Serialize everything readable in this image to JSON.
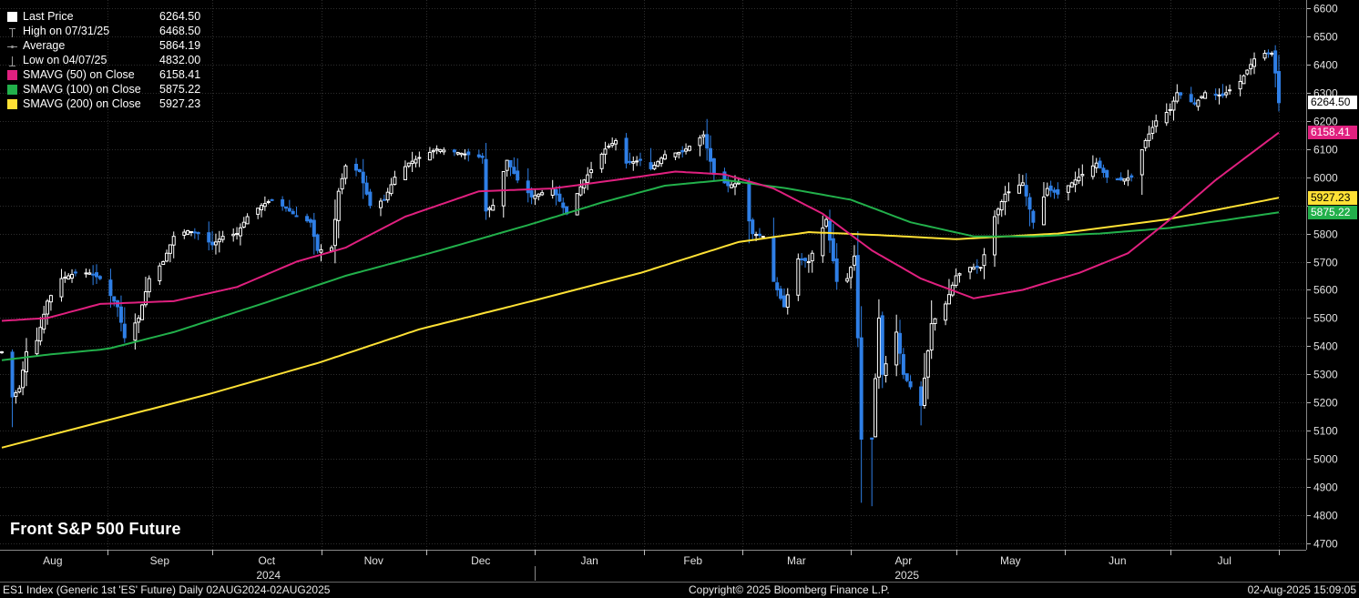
{
  "legend": [
    {
      "label": "Last Price",
      "value": "6264.50",
      "color": "#ffffff",
      "icon": "square-icon"
    },
    {
      "label": "High on 07/31/25",
      "value": "6468.50",
      "color": "#9a9a9a",
      "icon": "high-marker-icon"
    },
    {
      "label": "Average",
      "value": "5864.19",
      "color": "#9a9a9a",
      "icon": "average-marker-icon"
    },
    {
      "label": "Low on 04/07/25",
      "value": "4832.00",
      "color": "#9a9a9a",
      "icon": "low-marker-icon"
    },
    {
      "label": "SMAVG (50)  on Close",
      "value": "6158.41",
      "color": "#e0207f",
      "icon": "square-icon"
    },
    {
      "label": "SMAVG (100)  on Close",
      "value": "5875.22",
      "color": "#22b04b",
      "icon": "square-icon"
    },
    {
      "label": "SMAVG (200)  on Close",
      "value": "5927.23",
      "color": "#ffe135",
      "icon": "square-icon"
    }
  ],
  "title": "Front S&P 500 Future",
  "footer": {
    "left": "ES1 Index (Generic 1st 'ES' Future)  Daily 02AUG2024-02AUG2025",
    "center": "Copyright© 2025 Bloomberg Finance L.P.",
    "right": "02-Aug-2025 15:09:05"
  },
  "badges": [
    {
      "name": "last-price-badge",
      "text": "6264.50",
      "value": 6264.5,
      "bg": "#ffffff",
      "fg": "#000000"
    },
    {
      "name": "smavg50-badge",
      "text": "6158.41",
      "value": 6158.41,
      "bg": "#e0207f",
      "fg": "#ffffff"
    },
    {
      "name": "smavg200-badge",
      "text": "5927.23",
      "value": 5927.23,
      "bg": "#ffe135",
      "fg": "#000000"
    },
    {
      "name": "smavg100-badge",
      "text": "5875.22",
      "value": 5875.22,
      "bg": "#22b04b",
      "fg": "#ffffff"
    }
  ],
  "colors": {
    "background": "#000000",
    "grid": "#2e2e2e",
    "up": "#ffffff",
    "down": "#2f7fe6",
    "sma50": "#e0207f",
    "sma100": "#22b04b",
    "sma200": "#ffe135",
    "axis_text": "#e0e0e0"
  },
  "chart_data": {
    "type": "line",
    "subtype": "candlestick",
    "title": "Front S&P 500 Future",
    "ylim": [
      4700,
      6600
    ],
    "yticks": [
      4700,
      4800,
      4900,
      5000,
      5100,
      5200,
      5300,
      5400,
      5500,
      5600,
      5700,
      5800,
      5900,
      6000,
      6100,
      6200,
      6300,
      6400,
      6500,
      6600
    ],
    "ytick_labels_hidden_near_badges": true,
    "grid": true,
    "y_axis_side": "right",
    "months": [
      "Aug",
      "Sep",
      "Oct",
      "Nov",
      "Dec",
      "Jan",
      "Feb",
      "Mar",
      "Apr",
      "May",
      "Jun",
      "Jul"
    ],
    "years": [
      "2024",
      "2025"
    ],
    "legend_position": "top-left",
    "x_range": [
      "2024-08-02",
      "2025-08-01"
    ],
    "month_starts": [
      "2024-08-01",
      "2024-09-01",
      "2024-10-01",
      "2024-11-01",
      "2024-12-01",
      "2025-01-01",
      "2025-02-01",
      "2025-03-01",
      "2025-04-01",
      "2025-05-01",
      "2025-06-01",
      "2025-07-01",
      "2025-08-01"
    ],
    "close_keypoints": [
      [
        "2024-08-02",
        5380
      ],
      [
        "2024-08-05",
        5220
      ],
      [
        "2024-08-07",
        5250
      ],
      [
        "2024-08-09",
        5380
      ],
      [
        "2024-08-12",
        5420
      ],
      [
        "2024-08-15",
        5560
      ],
      [
        "2024-08-19",
        5640
      ],
      [
        "2024-08-23",
        5660
      ],
      [
        "2024-08-27",
        5660
      ],
      [
        "2024-08-30",
        5640
      ],
      [
        "2024-09-04",
        5540
      ],
      [
        "2024-09-06",
        5430
      ],
      [
        "2024-09-10",
        5500
      ],
      [
        "2024-09-13",
        5640
      ],
      [
        "2024-09-17",
        5700
      ],
      [
        "2024-09-20",
        5790
      ],
      [
        "2024-09-24",
        5810
      ],
      [
        "2024-09-27",
        5800
      ],
      [
        "2024-10-01",
        5760
      ],
      [
        "2024-10-04",
        5790
      ],
      [
        "2024-10-08",
        5800
      ],
      [
        "2024-10-11",
        5860
      ],
      [
        "2024-10-15",
        5900
      ],
      [
        "2024-10-18",
        5920
      ],
      [
        "2024-10-22",
        5890
      ],
      [
        "2024-10-25",
        5860
      ],
      [
        "2024-10-29",
        5840
      ],
      [
        "2024-10-31",
        5740
      ],
      [
        "2024-11-04",
        5750
      ],
      [
        "2024-11-06",
        5950
      ],
      [
        "2024-11-08",
        6040
      ],
      [
        "2024-11-12",
        6020
      ],
      [
        "2024-11-15",
        5900
      ],
      [
        "2024-11-19",
        5920
      ],
      [
        "2024-11-22",
        6000
      ],
      [
        "2024-11-26",
        6050
      ],
      [
        "2024-11-29",
        6070
      ],
      [
        "2024-12-04",
        6100
      ],
      [
        "2024-12-09",
        6090
      ],
      [
        "2024-12-13",
        6080
      ],
      [
        "2024-12-17",
        6070
      ],
      [
        "2024-12-18",
        5880
      ],
      [
        "2024-12-20",
        5900
      ],
      [
        "2024-12-24",
        6060
      ],
      [
        "2024-12-27",
        5990
      ],
      [
        "2024-12-31",
        5930
      ],
      [
        "2025-01-06",
        5960
      ],
      [
        "2025-01-10",
        5870
      ],
      [
        "2025-01-15",
        5990
      ],
      [
        "2025-01-21",
        6100
      ],
      [
        "2025-01-24",
        6130
      ],
      [
        "2025-01-27",
        6050
      ],
      [
        "2025-01-31",
        6060
      ],
      [
        "2025-02-03",
        6030
      ],
      [
        "2025-02-07",
        6080
      ],
      [
        "2025-02-12",
        6090
      ],
      [
        "2025-02-18",
        6150
      ],
      [
        "2025-02-21",
        6010
      ],
      [
        "2025-02-25",
        5970
      ],
      [
        "2025-02-28",
        5980
      ],
      [
        "2025-03-04",
        5800
      ],
      [
        "2025-03-07",
        5790
      ],
      [
        "2025-03-10",
        5630
      ],
      [
        "2025-03-13",
        5540
      ],
      [
        "2025-03-17",
        5710
      ],
      [
        "2025-03-20",
        5700
      ],
      [
        "2025-03-25",
        5850
      ],
      [
        "2025-03-28",
        5630
      ],
      [
        "2025-03-31",
        5640
      ],
      [
        "2025-04-02",
        5720
      ],
      [
        "2025-04-03",
        5430
      ],
      [
        "2025-04-04",
        5070
      ],
      [
        "2025-04-07",
        5070
      ],
      [
        "2025-04-09",
        5500
      ],
      [
        "2025-04-10",
        5300
      ],
      [
        "2025-04-14",
        5450
      ],
      [
        "2025-04-16",
        5300
      ],
      [
        "2025-04-21",
        5190
      ],
      [
        "2025-04-24",
        5480
      ],
      [
        "2025-04-28",
        5550
      ],
      [
        "2025-05-01",
        5650
      ],
      [
        "2025-05-05",
        5680
      ],
      [
        "2025-05-08",
        5680
      ],
      [
        "2025-05-12",
        5860
      ],
      [
        "2025-05-15",
        5940
      ],
      [
        "2025-05-20",
        5980
      ],
      [
        "2025-05-23",
        5840
      ],
      [
        "2025-05-27",
        5960
      ],
      [
        "2025-05-30",
        5940
      ],
      [
        "2025-06-04",
        5990
      ],
      [
        "2025-06-10",
        6050
      ],
      [
        "2025-06-13",
        6000
      ],
      [
        "2025-06-17",
        5990
      ],
      [
        "2025-06-20",
        6000
      ],
      [
        "2025-06-24",
        6130
      ],
      [
        "2025-06-27",
        6200
      ],
      [
        "2025-07-01",
        6240
      ],
      [
        "2025-07-03",
        6300
      ],
      [
        "2025-07-08",
        6260
      ],
      [
        "2025-07-11",
        6300
      ],
      [
        "2025-07-16",
        6290
      ],
      [
        "2025-07-21",
        6340
      ],
      [
        "2025-07-25",
        6420
      ],
      [
        "2025-07-28",
        6440
      ],
      [
        "2025-07-30",
        6440
      ],
      [
        "2025-07-31",
        6370
      ],
      [
        "2025-08-01",
        6264.5
      ]
    ],
    "sma50_keypoints": [
      [
        "2024-08-02",
        5490
      ],
      [
        "2024-08-15",
        5500
      ],
      [
        "2024-08-30",
        5550
      ],
      [
        "2024-09-20",
        5560
      ],
      [
        "2024-10-08",
        5610
      ],
      [
        "2024-10-25",
        5700
      ],
      [
        "2024-11-08",
        5750
      ],
      [
        "2024-11-25",
        5860
      ],
      [
        "2024-12-16",
        5950
      ],
      [
        "2025-01-06",
        5960
      ],
      [
        "2025-01-24",
        5990
      ],
      [
        "2025-02-10",
        6020
      ],
      [
        "2025-02-24",
        6010
      ],
      [
        "2025-03-10",
        5960
      ],
      [
        "2025-03-24",
        5870
      ],
      [
        "2025-04-07",
        5740
      ],
      [
        "2025-04-21",
        5640
      ],
      [
        "2025-05-06",
        5570
      ],
      [
        "2025-05-20",
        5600
      ],
      [
        "2025-06-05",
        5660
      ],
      [
        "2025-06-19",
        5730
      ],
      [
        "2025-07-01",
        5850
      ],
      [
        "2025-07-14",
        5990
      ],
      [
        "2025-08-01",
        6158.41
      ]
    ],
    "sma100_keypoints": [
      [
        "2024-08-02",
        5350
      ],
      [
        "2024-08-15",
        5370
      ],
      [
        "2024-09-01",
        5390
      ],
      [
        "2024-09-20",
        5450
      ],
      [
        "2024-10-15",
        5550
      ],
      [
        "2024-11-08",
        5650
      ],
      [
        "2024-12-02",
        5730
      ],
      [
        "2024-12-30",
        5830
      ],
      [
        "2025-01-20",
        5910
      ],
      [
        "2025-02-07",
        5970
      ],
      [
        "2025-02-24",
        5990
      ],
      [
        "2025-03-14",
        5960
      ],
      [
        "2025-04-01",
        5920
      ],
      [
        "2025-04-18",
        5840
      ],
      [
        "2025-05-06",
        5790
      ],
      [
        "2025-05-23",
        5790
      ],
      [
        "2025-06-11",
        5800
      ],
      [
        "2025-07-01",
        5820
      ],
      [
        "2025-07-18",
        5850
      ],
      [
        "2025-08-01",
        5875.22
      ]
    ],
    "sma200_keypoints": [
      [
        "2024-08-02",
        5040
      ],
      [
        "2024-08-30",
        5130
      ],
      [
        "2024-09-30",
        5230
      ],
      [
        "2024-10-31",
        5340
      ],
      [
        "2024-11-29",
        5460
      ],
      [
        "2024-12-31",
        5560
      ],
      [
        "2025-01-31",
        5660
      ],
      [
        "2025-02-28",
        5770
      ],
      [
        "2025-03-20",
        5805
      ],
      [
        "2025-04-08",
        5795
      ],
      [
        "2025-05-01",
        5780
      ],
      [
        "2025-05-30",
        5800
      ],
      [
        "2025-06-30",
        5850
      ],
      [
        "2025-07-25",
        5910
      ],
      [
        "2025-08-01",
        5927.23
      ]
    ],
    "last_price": 6264.5,
    "high": {
      "date": "2025-07-31",
      "value": 6468.5
    },
    "low": {
      "date": "2025-04-07",
      "value": 4832.0
    },
    "average": 5864.19
  }
}
